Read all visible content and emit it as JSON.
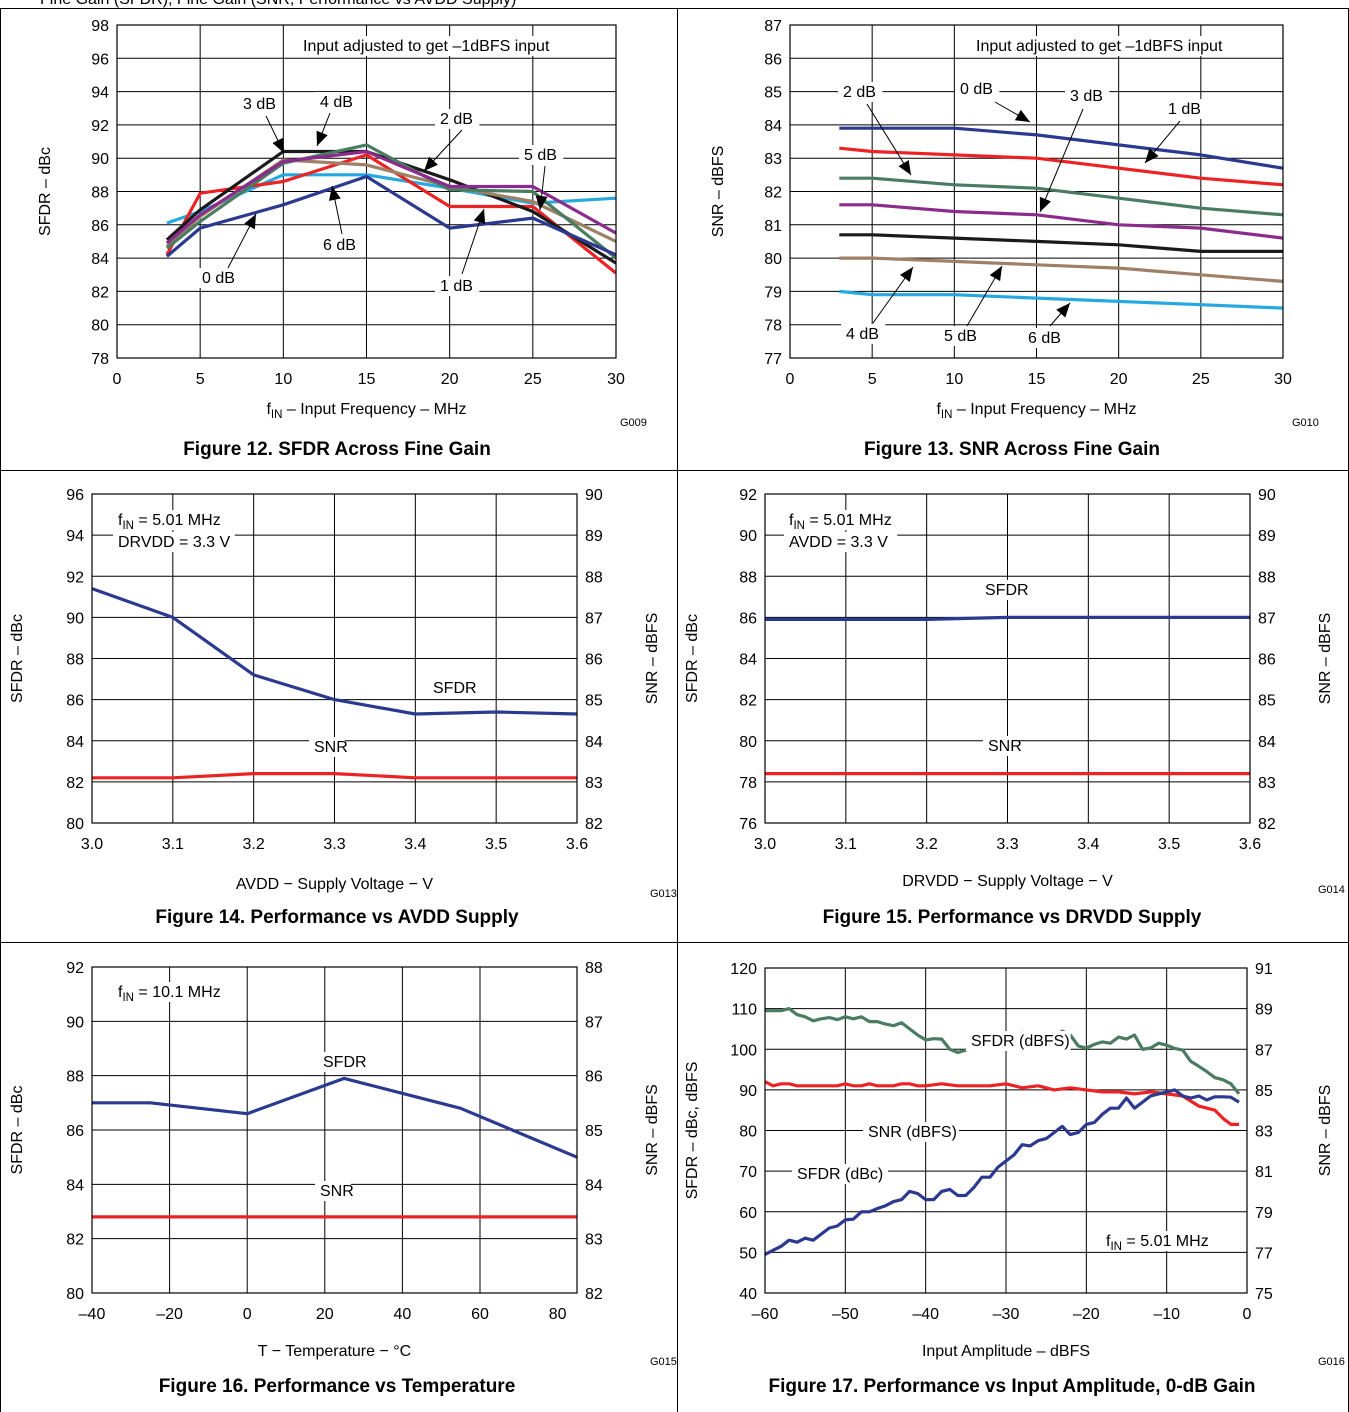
{
  "header_text": "Fine Gain (SFDR), Fine Gain (SNR, Performance vs AVDD Supply)",
  "chart_data": [
    {
      "type": "line",
      "caption": "Figure 12. SFDR Across Fine Gain",
      "code": "G009",
      "xlabel_parts": [
        "f",
        "IN",
        " – Input Frequency – MHz"
      ],
      "ylabel": "SFDR – dBc",
      "xlim": [
        0,
        30
      ],
      "ylim": [
        78,
        98
      ],
      "xticks": [
        0,
        5,
        10,
        15,
        20,
        25,
        30
      ],
      "yticks": [
        78,
        80,
        82,
        84,
        86,
        88,
        90,
        92,
        94,
        96,
        98
      ],
      "grid": true,
      "annotation": "Input adjusted to get –1dBFS input",
      "series": [
        {
          "name": "0 dB",
          "color": "#26a9e0",
          "x": [
            3,
            5,
            10,
            15,
            20,
            25,
            30
          ],
          "y": [
            86.1,
            86.8,
            89.0,
            89.0,
            88.2,
            87.3,
            87.6
          ]
        },
        {
          "name": "1 dB",
          "color": "#ed2224",
          "x": [
            3,
            5,
            10,
            15,
            20,
            25,
            30
          ],
          "y": [
            84.2,
            87.9,
            88.6,
            90.2,
            87.1,
            87.1,
            83.1
          ]
        },
        {
          "name": "2 dB",
          "color": "#1a1a1a",
          "x": [
            3,
            5,
            10,
            15,
            20,
            25,
            30
          ],
          "y": [
            85.1,
            86.9,
            90.4,
            90.4,
            88.7,
            86.8,
            83.7
          ]
        },
        {
          "name": "3 dB",
          "color": "#9e8067",
          "x": [
            3,
            5,
            10,
            15,
            20,
            25,
            30
          ],
          "y": [
            84.7,
            86.5,
            89.9,
            89.6,
            88.3,
            87.4,
            85.0
          ]
        },
        {
          "name": "4 dB",
          "color": "#497c60",
          "x": [
            3,
            5,
            10,
            15,
            20,
            25,
            30
          ],
          "y": [
            84.6,
            86.2,
            89.7,
            90.8,
            88.1,
            88.0,
            84.0
          ]
        },
        {
          "name": "5 dB",
          "color": "#8b2b8d",
          "x": [
            3,
            5,
            10,
            15,
            20,
            25,
            30
          ],
          "y": [
            84.9,
            86.6,
            89.8,
            90.4,
            88.3,
            88.3,
            85.5
          ]
        },
        {
          "name": "6 dB",
          "color": "#2b3990",
          "x": [
            3,
            5,
            10,
            15,
            20,
            25,
            30
          ],
          "y": [
            84.1,
            85.8,
            87.2,
            88.9,
            85.8,
            86.4,
            84.2
          ]
        }
      ],
      "labels": [
        "0 dB",
        "1 dB",
        "2 dB",
        "3 dB",
        "4 dB",
        "5 dB",
        "6 dB"
      ]
    },
    {
      "type": "line",
      "caption": "Figure 13. SNR Across Fine Gain",
      "code": "G010",
      "xlabel_parts": [
        "f",
        "IN",
        " – Input Frequency – MHz"
      ],
      "ylabel": "SNR – dBFS",
      "xlim": [
        0,
        30
      ],
      "ylim": [
        77,
        87
      ],
      "xticks": [
        0,
        5,
        10,
        15,
        20,
        25,
        30
      ],
      "yticks": [
        77,
        78,
        79,
        80,
        81,
        82,
        83,
        84,
        85,
        86,
        87
      ],
      "grid": true,
      "annotation": "Input adjusted to get –1dBFS input",
      "series": [
        {
          "name": "0 dB",
          "color": "#2b3990",
          "x": [
            3,
            5,
            10,
            15,
            20,
            25,
            30
          ],
          "y": [
            83.9,
            83.9,
            83.9,
            83.7,
            83.4,
            83.1,
            82.7
          ]
        },
        {
          "name": "1 dB",
          "color": "#ed2224",
          "x": [
            3,
            5,
            10,
            15,
            20,
            25,
            30
          ],
          "y": [
            83.3,
            83.2,
            83.1,
            83.0,
            82.7,
            82.4,
            82.2
          ]
        },
        {
          "name": "2 dB",
          "color": "#497c60",
          "x": [
            3,
            5,
            10,
            15,
            20,
            25,
            30
          ],
          "y": [
            82.4,
            82.4,
            82.2,
            82.1,
            81.8,
            81.5,
            81.3
          ]
        },
        {
          "name": "3 dB",
          "color": "#8b2b8d",
          "x": [
            3,
            5,
            10,
            15,
            20,
            25,
            30
          ],
          "y": [
            81.6,
            81.6,
            81.4,
            81.3,
            81.0,
            80.9,
            80.6
          ]
        },
        {
          "name": "4 dB",
          "color": "#1a1a1a",
          "x": [
            3,
            5,
            10,
            15,
            20,
            25,
            30
          ],
          "y": [
            80.7,
            80.7,
            80.6,
            80.5,
            80.4,
            80.2,
            80.2
          ]
        },
        {
          "name": "5 dB",
          "color": "#9e8067",
          "x": [
            3,
            5,
            10,
            15,
            20,
            25,
            30
          ],
          "y": [
            80.0,
            80.0,
            79.9,
            79.8,
            79.7,
            79.5,
            79.3
          ]
        },
        {
          "name": "6 dB",
          "color": "#26a9e0",
          "x": [
            3,
            5,
            10,
            15,
            20,
            25,
            30
          ],
          "y": [
            79.0,
            78.9,
            78.9,
            78.8,
            78.7,
            78.6,
            78.5
          ]
        }
      ],
      "labels": [
        "2 dB",
        "0 dB",
        "3 dB",
        "1 dB",
        "4 dB",
        "5 dB",
        "6 dB"
      ]
    },
    {
      "type": "line",
      "caption": "Figure 14. Performance vs AVDD Supply",
      "code": "G013",
      "xlabel": "AVDD − Supply Voltage − V",
      "ylabel": "SFDR – dBc",
      "ylabel_right": "SNR – dBFS",
      "xlim": [
        3.0,
        3.6
      ],
      "ylim": [
        80,
        96
      ],
      "ylim_right": [
        82,
        90
      ],
      "xticks": [
        "3.0",
        "3.1",
        "3.2",
        "3.3",
        "3.4",
        "3.5",
        "3.6"
      ],
      "yticks": [
        80,
        82,
        84,
        86,
        88,
        90,
        92,
        94,
        96
      ],
      "yticks_right": [
        82,
        83,
        84,
        85,
        86,
        87,
        88,
        89,
        90
      ],
      "grid": true,
      "conditions": [
        [
          "f",
          "IN",
          " = 5.01 MHz"
        ],
        [
          "DRVDD = 3.3 V"
        ]
      ],
      "series": [
        {
          "name": "SFDR",
          "color": "#2b3990",
          "axis": "left",
          "x": [
            3.0,
            3.1,
            3.2,
            3.3,
            3.4,
            3.5,
            3.6
          ],
          "y": [
            91.4,
            90.0,
            87.2,
            86.0,
            85.3,
            85.4,
            85.3
          ]
        },
        {
          "name": "SNR",
          "color": "#ed2224",
          "axis": "right",
          "x": [
            3.0,
            3.1,
            3.2,
            3.3,
            3.4,
            3.5,
            3.6
          ],
          "y": [
            83.1,
            83.1,
            83.2,
            83.2,
            83.1,
            83.1,
            83.1
          ]
        }
      ]
    },
    {
      "type": "line",
      "caption": "Figure 15. Performance vs DRVDD Supply",
      "code": "G014",
      "xlabel": "DRVDD − Supply Voltage − V",
      "ylabel": "SFDR – dBc",
      "ylabel_right": "SNR – dBFS",
      "xlim": [
        3.0,
        3.6
      ],
      "ylim": [
        76,
        92
      ],
      "ylim_right": [
        82,
        90
      ],
      "xticks": [
        "3.0",
        "3.1",
        "3.2",
        "3.3",
        "3.4",
        "3.5",
        "3.6"
      ],
      "yticks": [
        76,
        78,
        80,
        82,
        84,
        86,
        88,
        90,
        92
      ],
      "yticks_right": [
        82,
        83,
        84,
        85,
        86,
        87,
        88,
        89,
        90
      ],
      "grid": true,
      "conditions": [
        [
          "f",
          "IN",
          " = 5.01 MHz"
        ],
        [
          "AVDD = 3.3 V"
        ]
      ],
      "series": [
        {
          "name": "SFDR",
          "color": "#2b3990",
          "axis": "left",
          "x": [
            3.0,
            3.1,
            3.2,
            3.3,
            3.4,
            3.5,
            3.6
          ],
          "y": [
            85.9,
            85.9,
            85.9,
            86.0,
            86.0,
            86.0,
            86.0
          ]
        },
        {
          "name": "SNR",
          "color": "#ed2224",
          "axis": "right",
          "x": [
            3.0,
            3.1,
            3.2,
            3.3,
            3.4,
            3.5,
            3.6
          ],
          "y": [
            83.2,
            83.2,
            83.2,
            83.2,
            83.2,
            83.2,
            83.2
          ]
        }
      ]
    },
    {
      "type": "line",
      "caption": "Figure 16. Performance vs Temperature",
      "code": "G015",
      "xlabel": "T − Temperature − °C",
      "ylabel": "SFDR – dBc",
      "ylabel_right": "SNR – dBFS",
      "xlim": [
        -40,
        85
      ],
      "ylim": [
        80,
        92
      ],
      "ylim_right": [
        82,
        88
      ],
      "xticks": [
        "–40",
        "–20",
        "0",
        "20",
        "40",
        "60",
        "80"
      ],
      "xtick_values": [
        -40,
        -20,
        0,
        20,
        40,
        60,
        80
      ],
      "yticks": [
        80,
        82,
        84,
        86,
        88,
        90,
        92
      ],
      "yticks_right": [
        82,
        83,
        84,
        85,
        86,
        87,
        88
      ],
      "grid": true,
      "conditions": [
        [
          "f",
          "IN",
          " = 10.1 MHz"
        ]
      ],
      "series": [
        {
          "name": "SFDR",
          "color": "#2b3990",
          "axis": "left",
          "x": [
            -40,
            -25,
            0,
            25,
            55,
            85
          ],
          "y": [
            87.0,
            87.0,
            86.6,
            87.9,
            86.8,
            85.0
          ]
        },
        {
          "name": "SNR",
          "color": "#ed2224",
          "axis": "right",
          "x": [
            -40,
            -25,
            0,
            25,
            55,
            85
          ],
          "y": [
            83.4,
            83.4,
            83.4,
            83.4,
            83.4,
            83.4
          ]
        }
      ]
    },
    {
      "type": "line",
      "caption": "Figure 17. Performance vs Input Amplitude, 0-dB Gain",
      "code": "G016",
      "xlabel": "Input Amplitude – dBFS",
      "ylabel": "SFDR – dBc, dBFS",
      "ylabel_right": "SNR – dBFS",
      "xlim": [
        -60,
        0
      ],
      "ylim": [
        40,
        120
      ],
      "ylim_right": [
        75,
        91
      ],
      "xticks": [
        "–60",
        "–50",
        "–40",
        "–30",
        "–20",
        "–10",
        "0"
      ],
      "xtick_values": [
        -60,
        -50,
        -40,
        -30,
        -20,
        -10,
        0
      ],
      "yticks": [
        40,
        50,
        60,
        70,
        80,
        90,
        100,
        110,
        120
      ],
      "yticks_right": [
        75,
        77,
        79,
        81,
        83,
        85,
        87,
        89,
        91
      ],
      "grid": true,
      "conditions": [
        [
          "f",
          "IN",
          " = 5.01 MHz"
        ]
      ],
      "series": [
        {
          "name": "SFDR (dBFS)",
          "color": "#497c60",
          "axis": "left",
          "x": [
            -60,
            -58,
            -57,
            -56,
            -55,
            -54,
            -53,
            -52,
            -51,
            -50,
            -49,
            -48,
            -47,
            -46,
            -45,
            -44,
            -43,
            -42,
            -41,
            -40,
            -39,
            -38,
            -37,
            -36,
            -35,
            -34,
            -33,
            -32,
            -31,
            -30,
            -29,
            -28,
            -27,
            -26,
            -25,
            -24,
            -23,
            -22,
            -21,
            -20,
            -19,
            -18,
            -17,
            -16,
            -15,
            -14,
            -13,
            -12,
            -11,
            -10,
            -9,
            -8,
            -7,
            -6,
            -5,
            -4,
            -3,
            -2,
            -1
          ],
          "y": [
            109.5,
            109.5,
            110,
            108.5,
            108,
            107,
            107.5,
            107.8,
            107.3,
            108,
            107.5,
            108,
            106.8,
            106.8,
            106.2,
            105.8,
            106.5,
            105,
            103.5,
            102.3,
            102.6,
            102.5,
            100,
            99.2,
            99.8,
            101,
            100.5,
            102,
            102.3,
            103,
            103.5,
            104.2,
            103,
            102.5,
            103,
            102.2,
            104.5,
            103.5,
            100.8,
            100.3,
            101.2,
            101.8,
            101.5,
            103,
            102.5,
            103.5,
            100,
            100.3,
            101.5,
            101,
            100.2,
            99.8,
            97,
            95.8,
            94.5,
            93,
            92.5,
            91.5,
            89
          ]
        },
        {
          "name": "SNR (dBFS)",
          "color": "#ed2224",
          "axis": "right",
          "x": [
            -60,
            -59,
            -58,
            -57,
            -56,
            -55,
            -54,
            -53,
            -52,
            -51,
            -50,
            -49,
            -48,
            -47,
            -46,
            -45,
            -44,
            -43,
            -42,
            -41,
            -40,
            -38,
            -36,
            -34,
            -32,
            -30,
            -28,
            -26,
            -24,
            -22,
            -20,
            -18,
            -16,
            -14,
            -12,
            -10,
            -8,
            -6,
            -4,
            -3,
            -2,
            -1
          ],
          "y": [
            85.4,
            85.2,
            85.3,
            85.3,
            85.2,
            85.2,
            85.2,
            85.2,
            85.2,
            85.2,
            85.3,
            85.2,
            85.2,
            85.3,
            85.2,
            85.2,
            85.2,
            85.3,
            85.3,
            85.2,
            85.2,
            85.3,
            85.2,
            85.2,
            85.2,
            85.3,
            85.1,
            85.2,
            85.0,
            85.1,
            85.0,
            84.9,
            84.9,
            84.8,
            84.9,
            84.8,
            84.7,
            84.2,
            84.0,
            83.6,
            83.3,
            83.3
          ]
        },
        {
          "name": "SFDR (dBc)",
          "color": "#2b3990",
          "axis": "left",
          "x": [
            -60,
            -59,
            -58,
            -57,
            -56,
            -55,
            -54,
            -53,
            -52,
            -51,
            -50,
            -49,
            -48,
            -47,
            -46,
            -45,
            -44,
            -43,
            -42,
            -41,
            -40,
            -39,
            -38,
            -37,
            -36,
            -35,
            -34,
            -33,
            -32,
            -31,
            -30,
            -29,
            -28,
            -27,
            -26,
            -25,
            -24,
            -23,
            -22,
            -21,
            -20,
            -19,
            -18,
            -17,
            -16,
            -15,
            -14,
            -13,
            -12,
            -11,
            -10,
            -9,
            -8,
            -7,
            -6,
            -5,
            -4,
            -3,
            -2,
            -1
          ],
          "y": [
            49.5,
            50.5,
            51.5,
            53,
            52.5,
            53.5,
            53,
            54.5,
            56,
            56.5,
            58,
            58.2,
            60,
            60,
            60.8,
            61.5,
            62.5,
            63,
            65,
            64.5,
            63,
            63,
            65,
            65.5,
            64,
            64,
            66,
            68.5,
            68.5,
            71,
            72.5,
            74,
            76.5,
            76.2,
            77.5,
            78,
            79.5,
            81,
            79,
            79.5,
            81.5,
            82,
            84,
            85.5,
            85.5,
            88,
            85.5,
            87,
            88.5,
            89,
            89.5,
            90,
            88.5,
            88,
            88.5,
            87.5,
            88.3,
            88.3,
            88.2,
            87
          ]
        }
      ]
    }
  ]
}
